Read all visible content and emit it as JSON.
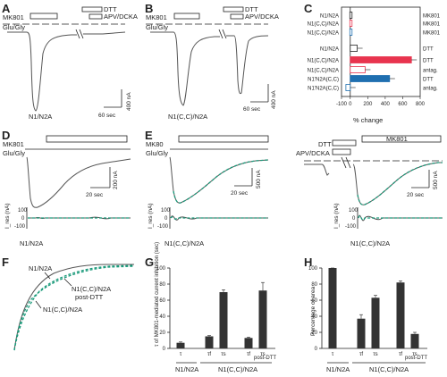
{
  "panels": {
    "A": {
      "letter": "A",
      "mk801": "MK801",
      "gluGly": "Glu/Gly",
      "dtt": "DTT",
      "apvDcka": "APV/DCKA",
      "scaleY": "400 nA",
      "scaleX": "60 sec",
      "label": "N1/N2A"
    },
    "B": {
      "letter": "B",
      "mk801": "MK801",
      "gluGly": "Glu/Gly",
      "dtt": "DTT",
      "apvDcka": "APV/DCKA",
      "scaleY": "400 nA",
      "scaleX": "60 sec",
      "label": "N1(C,C)/N2A"
    },
    "C": {
      "letter": "C",
      "xlabel": "% change",
      "ticks": [
        "-100",
        "0",
        "200",
        "400",
        "600",
        "800"
      ]
    },
    "D": {
      "letter": "D",
      "mk801": "MK801",
      "gluGly": "Glu/Gly",
      "scaleY": "200 nA",
      "scaleX": "20 sec",
      "res": "I_res (nA)",
      "resTicks": [
        "100",
        "0",
        "-100"
      ],
      "label": "N1/N2A"
    },
    "E": {
      "letter": "E",
      "mk801": "MK80",
      "gluGly": "Glu/Gly",
      "scaleY": "500 nA",
      "scaleX": "20 sec",
      "res": "I_res (nA)",
      "resTicks": [
        "100",
        "0",
        "-100"
      ],
      "label": "N1(C,C)/N2A"
    },
    "E2": {
      "dtt": "DTT",
      "apvDcka": "APV/DCKA",
      "mk801": "MK801",
      "scaleY": "500 nA",
      "scaleX": "20 sec",
      "res": "I_res (nA)",
      "resTicks": [
        "100",
        "0",
        "-100"
      ],
      "label": "N1(C,C)/N2A"
    },
    "F": {
      "letter": "F",
      "l1": "N1/N2A",
      "l2": "N1(C,C)/N2A",
      "l3": "post-DTT",
      "l4": "N1(C,C)/N2A"
    },
    "G": {
      "letter": "G",
      "ylabel": "τ of MK801-mediated current inhibition (sec)",
      "yticks": [
        "0",
        "20",
        "40",
        "60",
        "80",
        "100"
      ],
      "g1": "N1/N2A",
      "g2": "N1(C,C)/N2A",
      "xl": [
        "τ",
        "τf",
        "τs",
        "τf",
        "τs"
      ],
      "post": "post-DTT"
    },
    "H": {
      "letter": "H",
      "ylabel": "Percentage of area",
      "yticks": [
        "0",
        "20",
        "40",
        "60",
        "80",
        "100"
      ],
      "g1": "N1/N2A",
      "g2": "N1(C,C)/N2A",
      "xl": [
        "τ",
        "τf",
        "τs",
        "τf",
        "τs"
      ],
      "post": "post-DTT"
    }
  },
  "chart_data": [
    {
      "type": "bar",
      "panel": "C",
      "xlabel": "% change",
      "xlim": [
        -100,
        800
      ],
      "categories": [
        "N1/N2A",
        "N1(C,C)/N2A",
        "N1(C,C)/N2A",
        "N1/N2A",
        "N1(C,C)/N2A",
        "N1(C,C)/N2A",
        "N1'N2A(C,C)",
        "N1'N2A(C,C)"
      ],
      "right_labels": [
        "MK801",
        "MK801",
        "MK801",
        "DTT",
        "DTT",
        "antag.",
        "DTT",
        "antag."
      ],
      "values": [
        -5,
        -5,
        -5,
        80,
        700,
        170,
        450,
        -50
      ],
      "colors": [
        "#ffffff",
        "#ffffff",
        "#ffffff",
        "#ffffff",
        "#e8344e",
        "#ffffff",
        "#1f6fb0",
        "#ffffff"
      ],
      "edge_colors": [
        "#222222",
        "#e8344e",
        "#1f6fb0",
        "#222222",
        "#e8344e",
        "#e8344e",
        "#1f6fb0",
        "#1f6fb0"
      ]
    },
    {
      "type": "bar",
      "panel": "G",
      "ylim": [
        0,
        100
      ],
      "categories": [
        "τ",
        "τf",
        "τs",
        "τf",
        "τs"
      ],
      "values": [
        7,
        15,
        70,
        13,
        72
      ],
      "errors": [
        1,
        1,
        3,
        1,
        10
      ]
    },
    {
      "type": "bar",
      "panel": "H",
      "ylim": [
        0,
        100
      ],
      "categories": [
        "τ",
        "τf",
        "τs",
        "τf",
        "τs"
      ],
      "values": [
        100,
        37,
        63,
        82,
        18
      ],
      "errors": [
        0,
        5,
        3,
        2,
        2
      ]
    }
  ],
  "colors": {
    "trace": "#555555",
    "fit": "#1a9a7a",
    "red": "#e8344e",
    "blue": "#1f6fb0"
  }
}
